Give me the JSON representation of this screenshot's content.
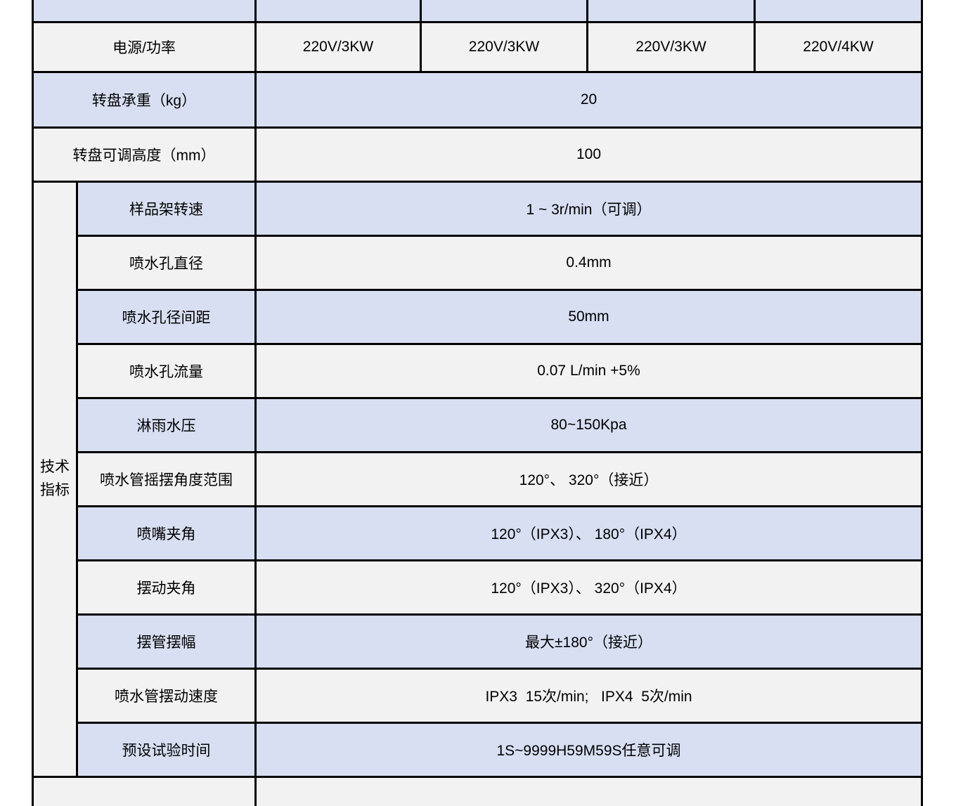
{
  "colors": {
    "row_lavender": "#d8dff2",
    "row_light": "#f2f2f2",
    "border": "#000000",
    "page_background": "#ffffff",
    "text": "#000000"
  },
  "table": {
    "top_partial_row": {
      "label": "",
      "values": [
        "",
        "",
        "",
        ""
      ]
    },
    "power_row": {
      "label": "电源/功率",
      "values": [
        "220V/3KW",
        "220V/3KW",
        "220V/3KW",
        "220V/4KW"
      ]
    },
    "simple_rows": [
      {
        "label": "转盘承重（kg）",
        "value": "20"
      },
      {
        "label": "转盘可调高度（mm）",
        "value": "100"
      }
    ],
    "tech_section": {
      "header": "技术指标",
      "rows": [
        {
          "label": "样品架转速",
          "value": "1 ~ 3r/min（可调）"
        },
        {
          "label": "喷水孔直径",
          "value": "0.4mm"
        },
        {
          "label": "喷水孔径间距",
          "value": "50mm"
        },
        {
          "label": "喷水孔流量",
          "value": "0.07 L/min +5%"
        },
        {
          "label": "淋雨水压",
          "value": "80~150Kpa"
        },
        {
          "label": "喷水管摇摆角度范围",
          "value": "120°、 320°（接近）"
        },
        {
          "label": "喷嘴夹角",
          "value": "120°（IPX3）、 180°（IPX4）"
        },
        {
          "label": "摆动夹角",
          "value": "120°（IPX3）、 320°（IPX4）"
        },
        {
          "label": "摆管摆幅",
          "value": "最大±180°（接近）"
        },
        {
          "label": "喷水管摆动速度",
          "value": "IPX3  15次/min;   IPX4  5次/min"
        },
        {
          "label": "预设试验时间",
          "value": "1S~9999H59M59S任意可调"
        }
      ]
    },
    "bottom_partial_row": {
      "label": "",
      "value": ""
    }
  }
}
